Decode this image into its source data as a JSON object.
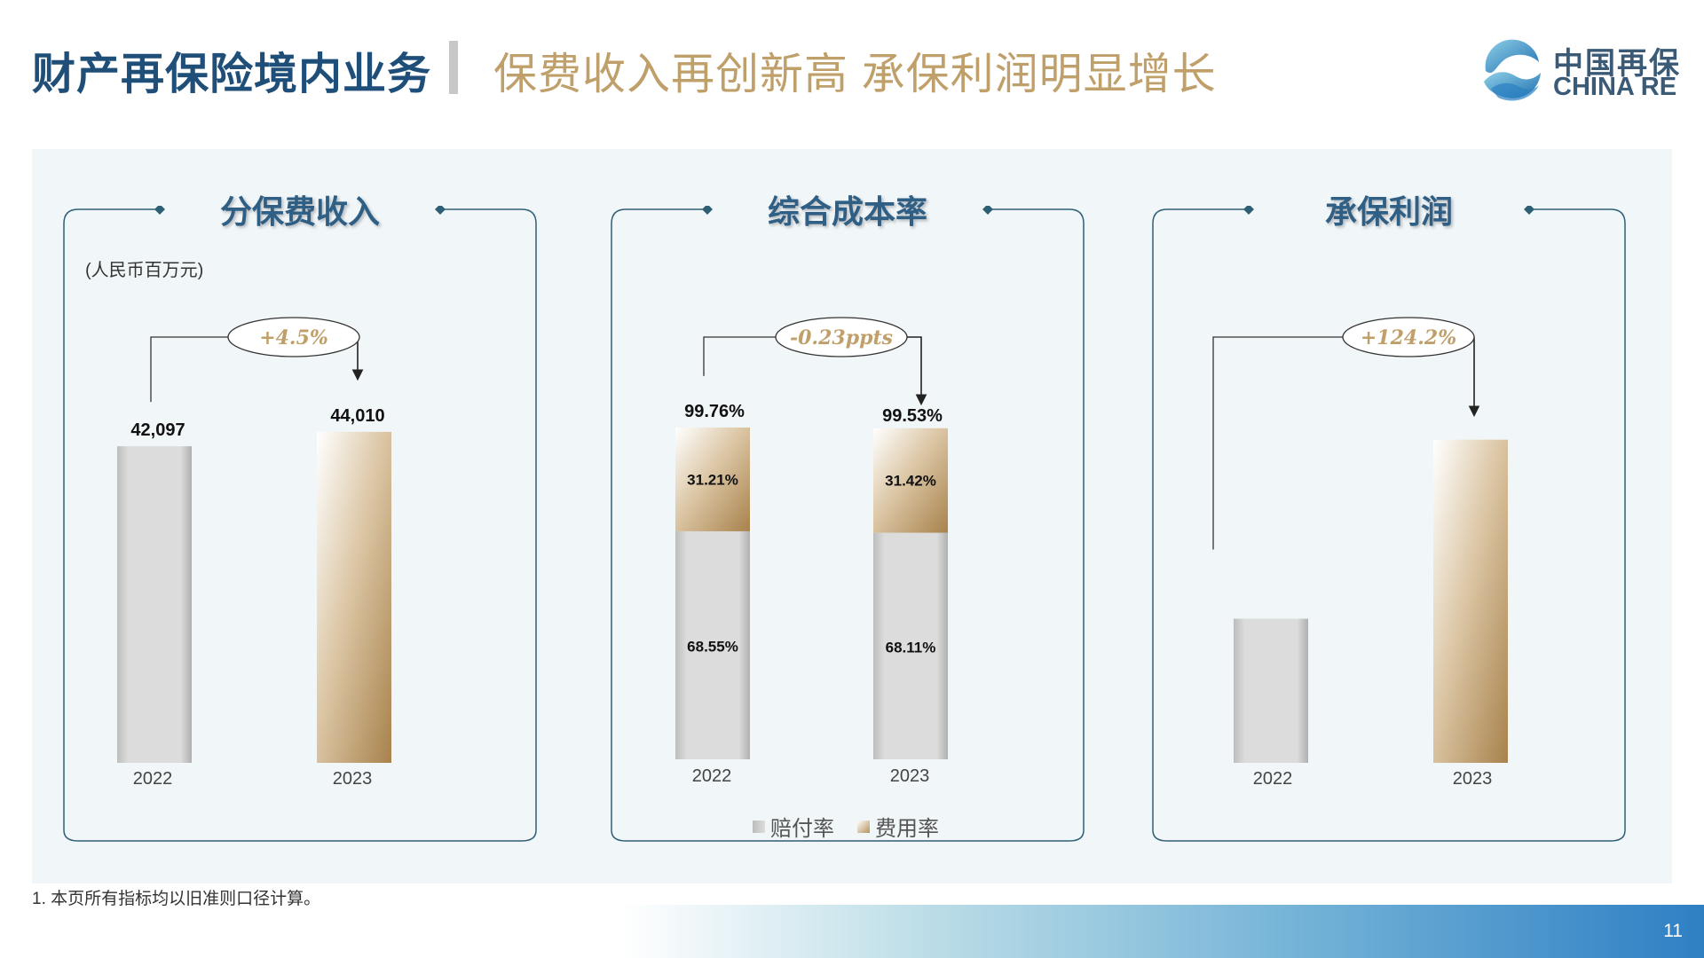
{
  "header": {
    "title": "财产再保险境内业务",
    "subtitle": "保费收入再创新高 承保利润明显增长"
  },
  "logo": {
    "cn": "中国再保",
    "en": "CHINA RE"
  },
  "chart_data": [
    {
      "type": "bar",
      "title": "分保费收入",
      "unit_label": "(人民币百万元)",
      "categories": [
        "2022",
        "2023"
      ],
      "values": [
        42097,
        44010
      ],
      "value_labels": [
        "42,097",
        "44,010"
      ],
      "change_label": "+4.5%",
      "ylim": [
        0,
        46000
      ]
    },
    {
      "type": "bar",
      "stacked": true,
      "title": "综合成本率",
      "categories": [
        "2022",
        "2023"
      ],
      "series": [
        {
          "name": "赔付率",
          "values": [
            68.55,
            68.11
          ],
          "labels": [
            "68.55%",
            "68.11%"
          ]
        },
        {
          "name": "费用率",
          "values": [
            31.21,
            31.42
          ],
          "labels": [
            "31.21%",
            "31.42%"
          ]
        }
      ],
      "totals": [
        99.76,
        99.53
      ],
      "total_labels": [
        "99.76%",
        "99.53%"
      ],
      "change_label": "-0.23ppts",
      "ylim": [
        0,
        100
      ]
    },
    {
      "type": "bar",
      "title": "承保利润",
      "categories": [
        "2022",
        "2023"
      ],
      "values": [
        1.0,
        2.242
      ],
      "change_label": "+124.2%",
      "ylim": [
        0,
        2.4
      ]
    }
  ],
  "colors": {
    "title": "#1f4e79",
    "subtitle": "#c0a06a",
    "bar_grey": "#d9d9d9",
    "bar_gold": "#b5925e",
    "frame": "#2f5f75",
    "change_text": "#c0a06a"
  },
  "footnote": "1. 本页所有指标均以旧准则口径计算。",
  "page_number": "11"
}
